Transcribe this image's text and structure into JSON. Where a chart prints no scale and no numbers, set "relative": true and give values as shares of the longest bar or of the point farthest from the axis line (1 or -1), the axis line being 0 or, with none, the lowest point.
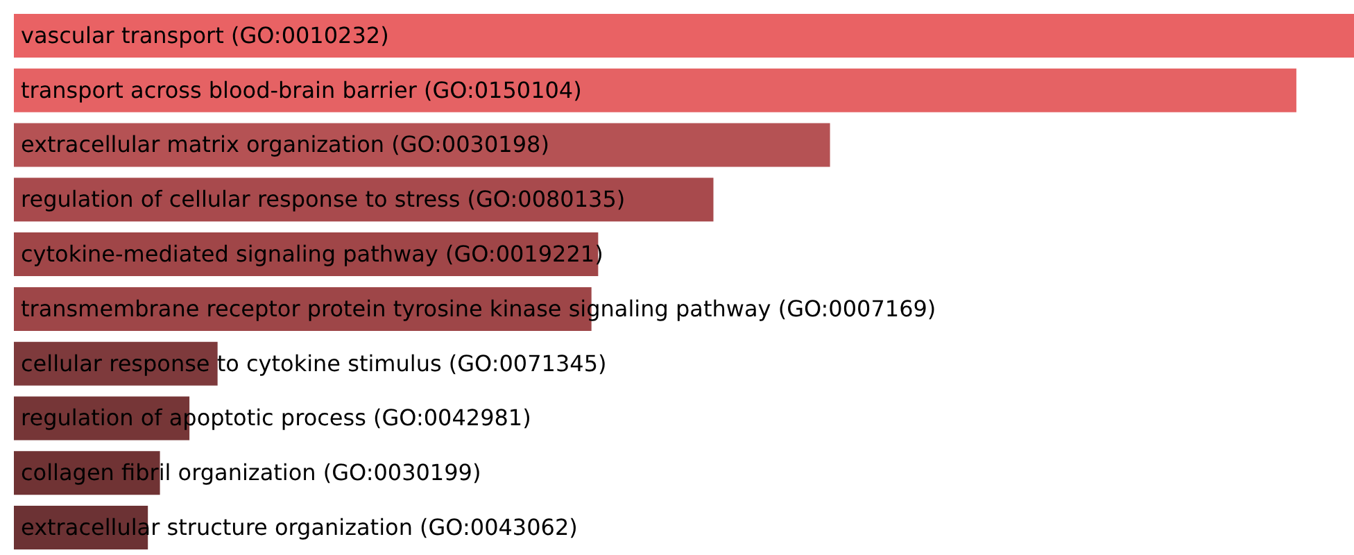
{
  "chart_data": {
    "type": "bar",
    "orientation": "horizontal",
    "relative": true,
    "categories": [
      "vascular transport (GO:0010232)",
      "transport across blood-brain barrier (GO:0150104)",
      "extracellular matrix organization (GO:0030198)",
      "regulation of cellular response to stress (GO:0080135)",
      "cytokine-mediated signaling pathway (GO:0019221)",
      "transmembrane receptor protein tyrosine kinase signaling pathway (GO:0007169)",
      "cellular response to cytokine stimulus (GO:0071345)",
      "regulation of apoptotic process (GO:0042981)",
      "collagen fibril organization (GO:0030199)",
      "extracellular structure organization (GO:0043062)"
    ],
    "values": [
      1,
      0.957,
      0.609,
      0.522,
      0.436,
      0.431,
      0.152,
      0.131,
      0.109,
      0.1
    ],
    "colors": [
      "#e96264",
      "#e56264",
      "#b55254",
      "#a84a4d",
      "#a04648",
      "#9e4648",
      "#7e3a3c",
      "#763637",
      "#703334",
      "#6c3234"
    ],
    "legend": false
  }
}
